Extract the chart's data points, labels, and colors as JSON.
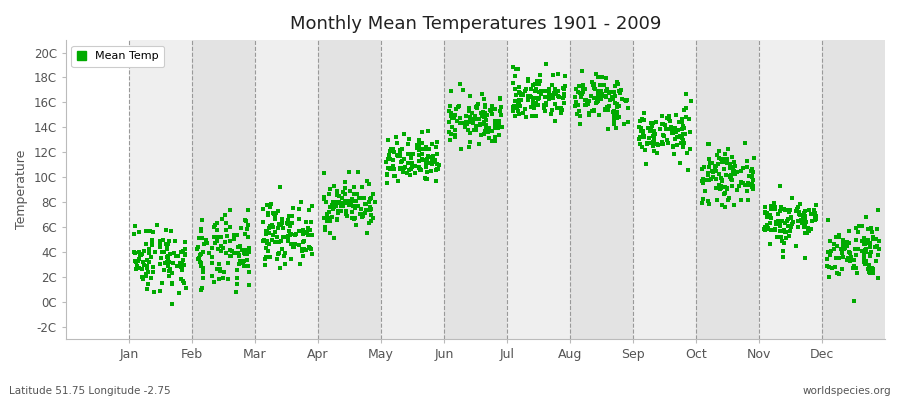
{
  "title": "Monthly Mean Temperatures 1901 - 2009",
  "ylabel": "Temperature",
  "xlabel_months": [
    "Jan",
    "Feb",
    "Mar",
    "Apr",
    "May",
    "Jun",
    "Jul",
    "Aug",
    "Sep",
    "Oct",
    "Nov",
    "Dec"
  ],
  "ytick_labels": [
    "-2C",
    "0C",
    "2C",
    "4C",
    "6C",
    "8C",
    "10C",
    "12C",
    "14C",
    "16C",
    "18C",
    "20C"
  ],
  "ytick_values": [
    -2,
    0,
    2,
    4,
    6,
    8,
    10,
    12,
    14,
    16,
    18,
    20
  ],
  "ylim": [
    -3.0,
    21.0
  ],
  "xlim": [
    0,
    13
  ],
  "legend_label": "Mean Temp",
  "marker_color": "#00AA00",
  "background_color": "#ffffff",
  "plot_bg_light": "#EFEFEF",
  "plot_bg_dark": "#E3E3E3",
  "subtitle": "Latitude 51.75 Longitude -2.75",
  "watermark": "worldspecies.org",
  "num_years": 109,
  "monthly_means": [
    3.5,
    3.8,
    5.5,
    7.8,
    11.2,
    14.5,
    16.5,
    16.2,
    13.5,
    10.0,
    6.5,
    4.2
  ],
  "monthly_stds": [
    1.4,
    1.5,
    1.2,
    1.0,
    1.0,
    1.0,
    1.0,
    1.0,
    1.0,
    1.0,
    1.0,
    1.2
  ],
  "seed": 42,
  "month_x_positions": [
    1,
    2,
    3,
    4,
    5,
    6,
    7,
    8,
    9,
    10,
    11,
    12
  ],
  "dashed_line_positions": [
    1,
    2,
    3,
    4,
    5,
    6,
    7,
    8,
    9,
    10,
    11,
    12
  ]
}
